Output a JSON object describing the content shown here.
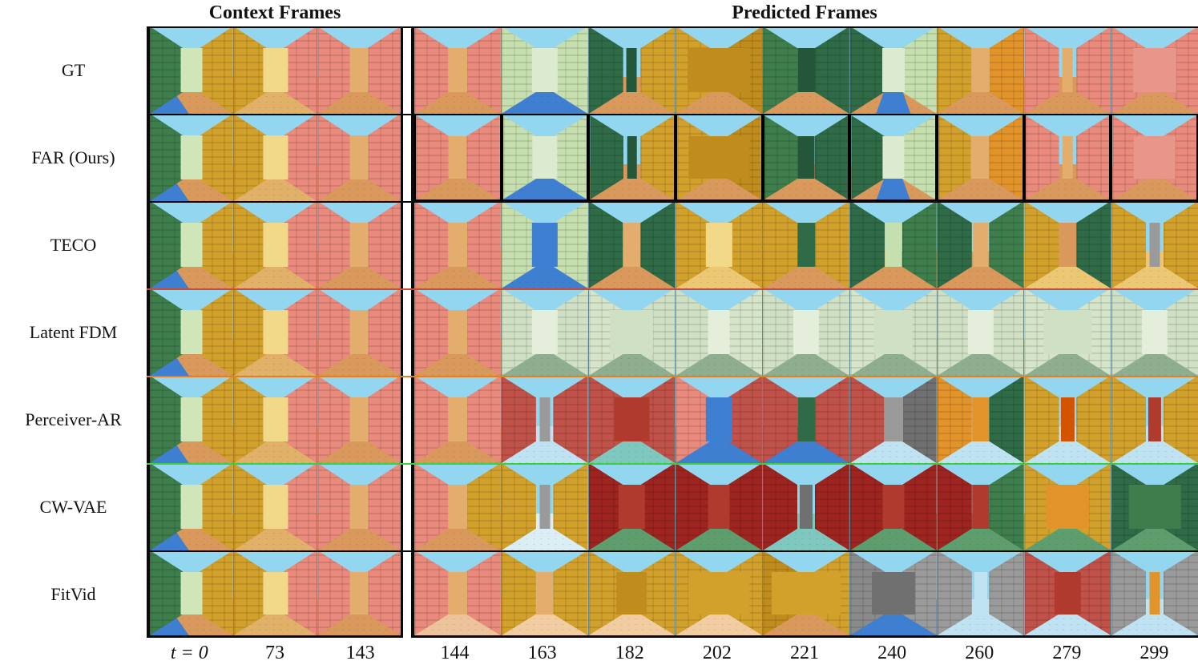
{
  "figure": {
    "titles": {
      "context": "Context Frames",
      "predicted": "Predicted Frames"
    },
    "time_labels": {
      "context": [
        "t = 0",
        "73",
        "143"
      ],
      "predicted": [
        "144",
        "163",
        "182",
        "202",
        "221",
        "240",
        "260",
        "279",
        "299"
      ]
    },
    "palette": {
      "sky": "#92d6f0",
      "tan_floor": "#d9995c",
      "yellow_brick": "#d2a12b",
      "dark_green": "#2f6b46",
      "light_green": "#c6dfae",
      "salmon": "#e98a7c",
      "water_blue": "#3f7fd1",
      "divider_red": "#cf4a2e",
      "divider_orange": "#e6801e",
      "divider_green": "#3ecf3e"
    },
    "context_scenes": [
      {
        "l": "#3e7d4c",
        "r": "#d2a12b",
        "c": "#cfe6b8",
        "f": "#d9995c",
        "w": "#3f7fd1",
        "wp": "left",
        "cw": 0.26
      },
      {
        "l": "#d2a12b",
        "r": "#e98a7c",
        "c": "#f2d98a",
        "f": "#e2b169",
        "cw": 0.3
      },
      {
        "l": "#e98a7c",
        "r": "#e98a7c",
        "c": "#e3ad6e",
        "f": "#d9995c",
        "cw": 0.22
      }
    ],
    "rows": [
      {
        "label": "GT",
        "divider_top": "#0a0a0a",
        "pred_frame_border": false,
        "predicted": [
          {
            "l": "#e98a7c",
            "r": "#e98a7c",
            "c": "#e3ad6e",
            "f": "#d9995c",
            "cw": 0.22
          },
          {
            "l": "#c6dfae",
            "r": "#c6dfae",
            "c": "#dcead0",
            "f": "#3f7fd1",
            "cw": 0.3
          },
          {
            "l": "#2f6b46",
            "r": "#d2a12b",
            "c": "#24563a",
            "f": "#d9995c",
            "cw": 0.12
          },
          {
            "l": "#d2a12b",
            "r": "#c08c1e",
            "c": "#c08c1e",
            "f": "#d9995c",
            "cw": 0.72
          },
          {
            "l": "#3e7d4c",
            "r": "#2f6b46",
            "c": "#24563a",
            "f": "#d9995c",
            "cw": 0.2
          },
          {
            "l": "#2f6b46",
            "r": "#c6dfae",
            "c": "#dcead0",
            "f": "#d9995c",
            "w": "#3f7fd1",
            "cw": 0.26
          },
          {
            "l": "#d2a12b",
            "r": "#e2932a",
            "c": "#e3ad6e",
            "f": "#d9995c",
            "cw": 0.22
          },
          {
            "l": "#e98a7c",
            "r": "#e98a7c",
            "c": "#e3ad6e",
            "f": "#d9995c",
            "cw": 0.12
          },
          {
            "l": "#e98a7c",
            "r": "#e98a7c",
            "c": "#e8958a",
            "f": "#d9995c",
            "cw": 0.5
          }
        ]
      },
      {
        "label": "FAR (Ours)",
        "divider_top": "#0a0a0a",
        "pred_frame_border": true,
        "predicted": [
          {
            "l": "#e98a7c",
            "r": "#e98a7c",
            "c": "#e3ad6e",
            "f": "#d9995c",
            "cw": 0.22
          },
          {
            "l": "#c6dfae",
            "r": "#c6dfae",
            "c": "#dcead0",
            "f": "#3f7fd1",
            "cw": 0.3
          },
          {
            "l": "#2f6b46",
            "r": "#d2a12b",
            "c": "#24563a",
            "f": "#d9995c",
            "cw": 0.12
          },
          {
            "l": "#d2a12b",
            "r": "#c08c1e",
            "c": "#c08c1e",
            "f": "#d9995c",
            "cw": 0.72
          },
          {
            "l": "#3e7d4c",
            "r": "#2f6b46",
            "c": "#24563a",
            "f": "#d9995c",
            "cw": 0.2
          },
          {
            "l": "#2f6b46",
            "r": "#c6dfae",
            "c": "#dcead0",
            "f": "#d9995c",
            "w": "#3f7fd1",
            "cw": 0.26
          },
          {
            "l": "#d2a12b",
            "r": "#e2932a",
            "c": "#e3ad6e",
            "f": "#d9995c",
            "cw": 0.22
          },
          {
            "l": "#e98a7c",
            "r": "#e98a7c",
            "c": "#e3ad6e",
            "f": "#d9995c",
            "cw": 0.12
          },
          {
            "l": "#e98a7c",
            "r": "#e98a7c",
            "c": "#e8958a",
            "f": "#d9995c",
            "cw": 0.5
          }
        ]
      },
      {
        "label": "TECO",
        "divider_top": "#0a0a0a",
        "pred_frame_border": false,
        "predicted": [
          {
            "l": "#e98a7c",
            "r": "#e98a7c",
            "c": "#e3ad6e",
            "f": "#d9995c",
            "cw": 0.22
          },
          {
            "l": "#c6dfae",
            "r": "#c6dfae",
            "c": "#3f7fd1",
            "f": "#3f7fd1",
            "cw": 0.3
          },
          {
            "l": "#2f6b46",
            "r": "#2f6b46",
            "c": "#e3ad6e",
            "f": "#d9995c",
            "cw": 0.2
          },
          {
            "l": "#d2a12b",
            "r": "#d2a12b",
            "c": "#f2d98a",
            "f": "#ecc874",
            "cw": 0.3
          },
          {
            "l": "#d2a12b",
            "r": "#d2a12b",
            "c": "#2f6b46",
            "f": "#d9995c",
            "cw": 0.2
          },
          {
            "l": "#2f6b46",
            "r": "#3e7d4c",
            "c": "#c6dfae",
            "f": "#d9995c",
            "cw": 0.2
          },
          {
            "l": "#2f6b46",
            "r": "#3e7d4c",
            "c": "#e3ad6e",
            "f": "#d9995c",
            "cw": 0.18
          },
          {
            "l": "#d2a12b",
            "r": "#2f6b46",
            "c": "#d9995c",
            "f": "#ecc874",
            "cw": 0.2
          },
          {
            "l": "#d2a12b",
            "r": "#d2a12b",
            "c": "#9a9a9a",
            "f": "#ecc874",
            "cw": 0.12
          }
        ]
      },
      {
        "label": "Latent FDM",
        "divider_top": "#cf4a2e",
        "pred_frame_border": false,
        "predicted": [
          {
            "l": "#e98a7c",
            "r": "#e98a7c",
            "c": "#e3ad6e",
            "f": "#d9995c",
            "cw": 0.22
          },
          {
            "l": "#cfe0c4",
            "r": "#cfe0c4",
            "c": "#e4eeda",
            "f": "#8fae8f",
            "cw": 0.3
          },
          {
            "l": "#d6e4ca",
            "r": "#cfe0c4",
            "c": "#cfe0c4",
            "f": "#8fae8f",
            "cw": 0.5
          },
          {
            "l": "#cfe0c4",
            "r": "#d6e4ca",
            "c": "#e4eeda",
            "f": "#8fae8f",
            "cw": 0.25
          },
          {
            "l": "#cfe0c4",
            "r": "#cfe0c4",
            "c": "#e4eeda",
            "f": "#8fae8f",
            "cw": 0.3
          },
          {
            "l": "#d6e4ca",
            "r": "#cfe0c4",
            "c": "#cfe0c4",
            "f": "#8fae8f",
            "cw": 0.45
          },
          {
            "l": "#cfe0c4",
            "r": "#cfe0c4",
            "c": "#e4eeda",
            "f": "#8fae8f",
            "cw": 0.3
          },
          {
            "l": "#d6e4ca",
            "r": "#d6e4ca",
            "c": "#cfe0c4",
            "f": "#8fae8f",
            "cw": 0.55
          },
          {
            "l": "#cfe0c4",
            "r": "#cfe0c4",
            "c": "#e4eeda",
            "f": "#8fae8f",
            "cw": 0.3
          }
        ]
      },
      {
        "label": "Perceiver-AR",
        "divider_top": "#e6801e",
        "pred_frame_border": false,
        "predicted": [
          {
            "l": "#e98a7c",
            "r": "#e98a7c",
            "c": "#e3ad6e",
            "f": "#d9995c",
            "cw": 0.22
          },
          {
            "l": "#c0524a",
            "r": "#c0524a",
            "c": "#9a9a9a",
            "f": "#bfe3f2",
            "cw": 0.12
          },
          {
            "l": "#c0524a",
            "r": "#c0524a",
            "c": "#b03a2e",
            "f": "#7fc8c0",
            "cw": 0.4
          },
          {
            "l": "#e98a7c",
            "r": "#c0524a",
            "c": "#3f7fd1",
            "f": "#3f7fd1",
            "cw": 0.3
          },
          {
            "l": "#c0524a",
            "r": "#c0524a",
            "c": "#2f6b46",
            "f": "#3f7fd1",
            "cw": 0.2
          },
          {
            "l": "#c0524a",
            "r": "#707070",
            "c": "#9a9a9a",
            "f": "#bfe3f2",
            "cw": 0.22
          },
          {
            "l": "#e2932a",
            "r": "#2f6b46",
            "c": "#e2932a",
            "f": "#bfe3f2",
            "cw": 0.2
          },
          {
            "l": "#d2a12b",
            "r": "#d2a12b",
            "c": "#d35400",
            "f": "#bfe3f2",
            "cw": 0.15
          },
          {
            "l": "#d2a12b",
            "r": "#d2a12b",
            "c": "#b03a2e",
            "f": "#bfe3f2",
            "cw": 0.15
          }
        ]
      },
      {
        "label": "CW-VAE",
        "divider_top": "#3ecf3e",
        "pred_frame_border": false,
        "predicted": [
          {
            "l": "#e98a7c",
            "r": "#d2a12b",
            "c": "#e3ad6e",
            "f": "#d9995c",
            "cw": 0.22
          },
          {
            "l": "#d2a12b",
            "r": "#d2a12b",
            "c": "#9a9a9a",
            "f": "#dceef5",
            "cw": 0.12
          },
          {
            "l": "#9e2420",
            "r": "#9e2420",
            "c": "#b03a2e",
            "f": "#5e9e6e",
            "cw": 0.3
          },
          {
            "l": "#9e2420",
            "r": "#9e2420",
            "c": "#b03a2e",
            "f": "#5e9e6e",
            "cw": 0.25
          },
          {
            "l": "#9e2420",
            "r": "#9e2420",
            "c": "#707070",
            "f": "#7fc8c0",
            "cw": 0.15
          },
          {
            "l": "#9e2420",
            "r": "#9e2420",
            "c": "#b03a2e",
            "f": "#5e9e6e",
            "cw": 0.25
          },
          {
            "l": "#9e2420",
            "r": "#3e7d4c",
            "c": "#b03a2e",
            "f": "#5e9e6e",
            "cw": 0.2
          },
          {
            "l": "#d2a12b",
            "r": "#d2a12b",
            "c": "#e2932a",
            "f": "#5e9e6e",
            "cw": 0.5
          },
          {
            "l": "#2f6b46",
            "r": "#2f6b46",
            "c": "#3e7d4c",
            "f": "#5e9e6e",
            "cw": 0.6
          }
        ]
      },
      {
        "label": "FitVid",
        "divider_top": "#0a0a0a",
        "pred_frame_border": false,
        "predicted": [
          {
            "l": "#e98a7c",
            "r": "#e98a7c",
            "c": "#e3ad6e",
            "f": "#ecc39b",
            "cw": 0.22
          },
          {
            "l": "#d2a12b",
            "r": "#d2a12b",
            "c": "#e3ad6e",
            "f": "#f2cda2",
            "cw": 0.2
          },
          {
            "l": "#d2a12b",
            "r": "#d2a12b",
            "c": "#c08c1e",
            "f": "#f2cda2",
            "cw": 0.35
          },
          {
            "l": "#d2a12b",
            "r": "#d2a12b",
            "c": "#d2a12b",
            "f": "#f2cda2",
            "cw": 0.7
          },
          {
            "l": "#c08c1e",
            "r": "#d2a12b",
            "c": "#d2a12b",
            "f": "#d9995c",
            "cw": 0.8
          },
          {
            "l": "#8a8a8a",
            "r": "#9a9a9a",
            "c": "#707070",
            "f": "#3f7fd1",
            "cw": 0.5
          },
          {
            "l": "#9a9a9a",
            "r": "#9a9a9a",
            "c": "#bfe3f2",
            "f": "#bfe3f2",
            "cw": 0.15
          },
          {
            "l": "#c0524a",
            "r": "#c0524a",
            "c": "#b03a2e",
            "f": "#bfe3f2",
            "cw": 0.3
          },
          {
            "l": "#9a9a9a",
            "r": "#9a9a9a",
            "c": "#e2932a",
            "f": "#bfe3f2",
            "cw": 0.12
          }
        ]
      }
    ]
  }
}
